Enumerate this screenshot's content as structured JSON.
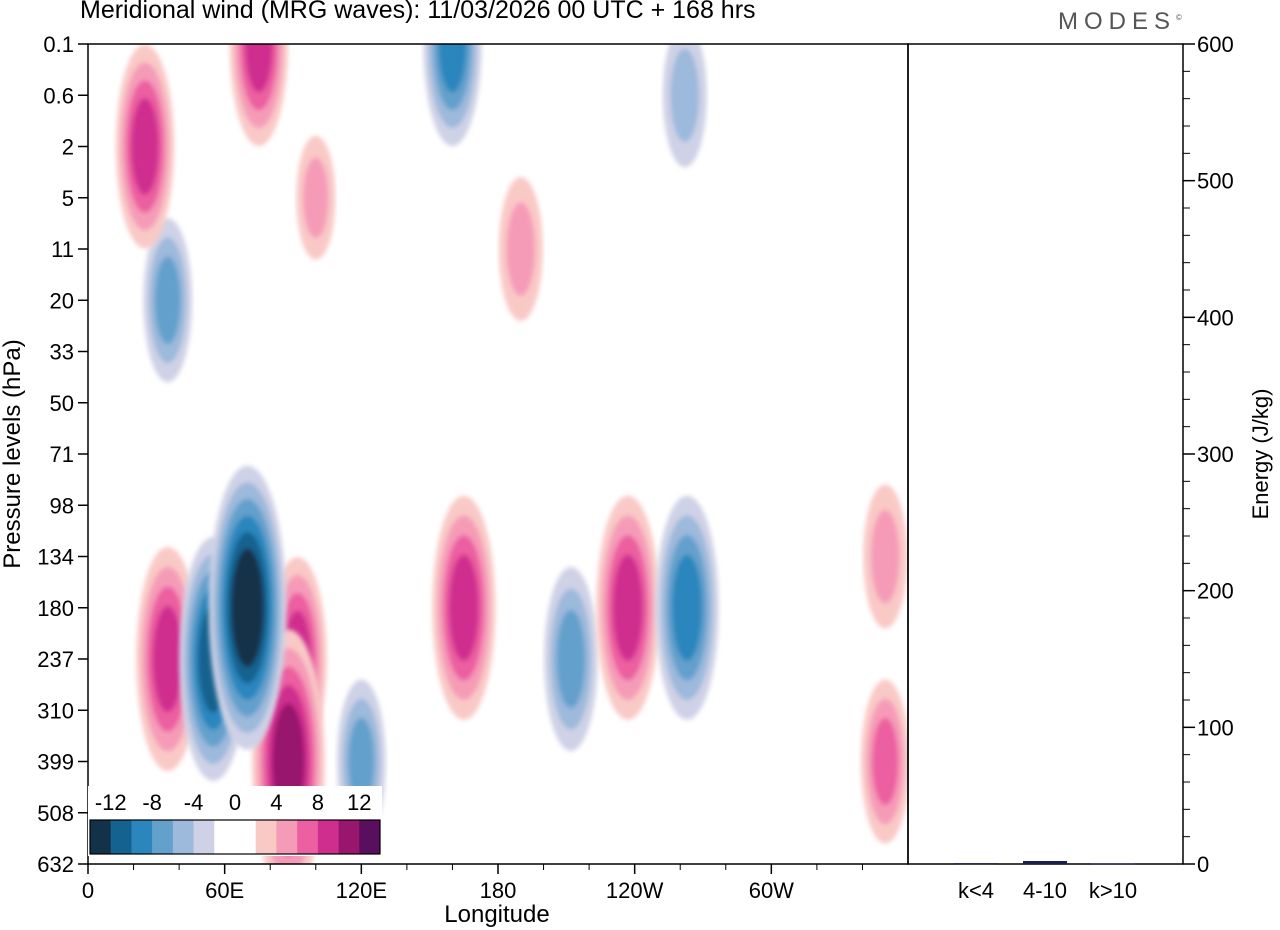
{
  "chart_data": {
    "type": "heatmap",
    "title": "Meridional wind (MRG waves):  11/03/2026  00 UTC  + 168 hrs",
    "brand": "MODES",
    "brand_mark": "©",
    "xlabel": "Longitude",
    "ylabel": "Pressure levels (hPa)",
    "x_ticks": [
      "0",
      "60E",
      "120E",
      "180",
      "120W",
      "60W"
    ],
    "x_tick_values": [
      0,
      60,
      120,
      180,
      240,
      300
    ],
    "xlim": [
      0,
      360
    ],
    "y_ticks": [
      "0.1",
      "0.6",
      "2",
      "5",
      "11",
      "20",
      "33",
      "50",
      "71",
      "98",
      "134",
      "180",
      "237",
      "310",
      "399",
      "508",
      "632"
    ],
    "colorbar": {
      "tick_labels": [
        "-12",
        "-8",
        "-4",
        "0",
        "4",
        "8",
        "12"
      ],
      "levels": [
        -14,
        -12,
        -10,
        -8,
        -6,
        -4,
        -2,
        0,
        2,
        4,
        6,
        8,
        10,
        12,
        14
      ],
      "colors": [
        "#13324a",
        "#14628f",
        "#2a86bd",
        "#63a0cc",
        "#9db9db",
        "#cfd2e6",
        "#ffffff",
        "#ffffff",
        "#f9c9c6",
        "#f59bb8",
        "#ec5fa0",
        "#cf2e8f",
        "#98166d",
        "#5a0e5e"
      ]
    },
    "features": [
      {
        "lon": 70,
        "level": "180",
        "value": -12
      },
      {
        "lon": 55,
        "level": "237",
        "value": -10
      },
      {
        "lon": 35,
        "level": "237",
        "value": 9
      },
      {
        "lon": 88,
        "level": "399",
        "value": 11
      },
      {
        "lon": 92,
        "level": "237",
        "value": 8
      },
      {
        "lon": 165,
        "level": "180",
        "value": 9
      },
      {
        "lon": 237,
        "level": "180",
        "value": 9
      },
      {
        "lon": 212,
        "level": "237",
        "value": -7
      },
      {
        "lon": 263,
        "level": "180",
        "value": -9
      },
      {
        "lon": 350,
        "level": "399",
        "value": 6
      },
      {
        "lon": 350,
        "level": "134",
        "value": 5
      },
      {
        "lon": 120,
        "level": "399",
        "value": -6
      },
      {
        "lon": 25,
        "level": "2",
        "value": 8
      },
      {
        "lon": 75,
        "level": "0.1",
        "value": 8
      },
      {
        "lon": 160,
        "level": "0.1",
        "value": -8
      },
      {
        "lon": 190,
        "level": "11",
        "value": 5
      },
      {
        "lon": 35,
        "level": "20",
        "value": -6
      },
      {
        "lon": 262,
        "level": "0.6",
        "value": -5
      },
      {
        "lon": 100,
        "level": "5",
        "value": 4
      }
    ],
    "energy": {
      "ylabel": "Energy (J/kg)",
      "ylim": [
        0,
        600
      ],
      "y_ticks": [
        "0",
        "100",
        "200",
        "300",
        "400",
        "500",
        "600"
      ],
      "categories": [
        "k<4",
        "4-10",
        "k>10"
      ],
      "values": [
        0.6,
        2.2,
        0.3
      ]
    }
  }
}
